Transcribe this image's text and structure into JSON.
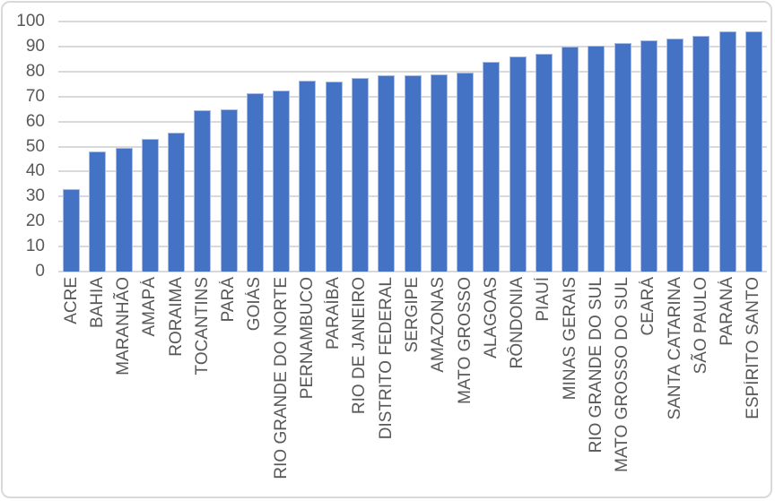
{
  "chart_data": {
    "type": "bar",
    "title": "",
    "xlabel": "",
    "ylabel": "",
    "categories": [
      "ACRE",
      "BAHIA",
      "MARANHÃO",
      "AMAPÁ",
      "RORAIMA",
      "TOCANTINS",
      "PARÁ",
      "GOIÁS",
      "RIO GRANDE DO NORTE",
      "PERNAMBUCO",
      "PARAÍBA",
      "RIO DE JANEIRO",
      "DISTRITO FEDERAL",
      "SERGIPE",
      "AMAZONAS",
      "MATO GROSSO",
      "ALAGOAS",
      "RÔNDONIA",
      "PIAUÍ",
      "MINAS GERAIS",
      "RIO GRANDE DO SUL",
      "MATO GROSSO DO SUL",
      "CEARÁ",
      "SANTA CATARINA",
      "SÃO PAULO",
      "PARANÁ",
      "ESPÍRITO SANTO"
    ],
    "values": [
      33,
      48,
      49.5,
      53,
      55.5,
      64.5,
      65,
      71.5,
      72.5,
      76.2,
      76,
      77.5,
      78.4,
      78.5,
      79,
      79.5,
      84,
      86,
      87,
      89.8,
      90.5,
      91.5,
      92.3,
      93.2,
      94.2,
      96,
      96
    ],
    "ylim": [
      0,
      100
    ],
    "ytick_interval": 10,
    "ytick_labels": [
      "0",
      "10",
      "20",
      "30",
      "40",
      "50",
      "60",
      "70",
      "80",
      "90",
      "100"
    ],
    "grid": "horizontal",
    "legend": "none",
    "x_label_rotation": 90,
    "colors": {
      "bar_fill": "#4472C4",
      "bar_border": "#A9BCE5",
      "gridline": "#D9D9D9",
      "axis_text": "#595959",
      "frame_border": "#D9D9D9",
      "background": "#FFFFFF"
    }
  }
}
